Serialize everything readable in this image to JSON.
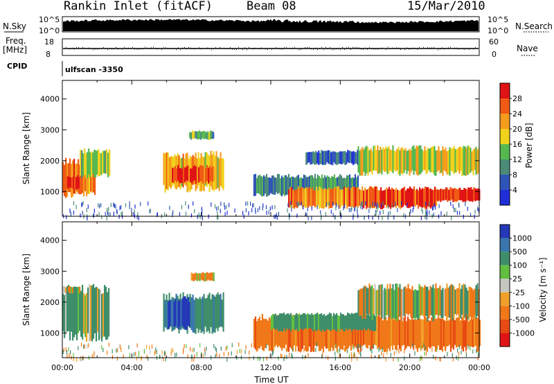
{
  "header": {
    "station": "Rankin Inlet (fitACF)",
    "beam": "Beam 08",
    "date": "15/Mar/2010"
  },
  "strip_labels": {
    "nsky": "N.Sky",
    "nsearch": "N.Search",
    "freq": "Freq.",
    "freq_unit": "[MHz]",
    "nave": "Nave",
    "cpid": "CPID",
    "cpid_value": "ulfscan -3350"
  },
  "strip_ticks": {
    "noise_left_top": "10^5",
    "noise_left_bottom": "10^0",
    "noise_right_top": "10^5",
    "noise_right_bottom": "10^0",
    "freq_top": "18",
    "freq_bottom": "8",
    "nave_top": "60",
    "nave_bottom": "0"
  },
  "colors": {
    "power_scale": [
      "#1f2ed8",
      "#2f54b8",
      "#4a8c78",
      "#55b850",
      "#f0d21c",
      "#f59c1c",
      "#f05a14",
      "#e01414"
    ],
    "velocity_scale": [
      "#2438b8",
      "#3a76ae",
      "#3e8e6a",
      "#62c040",
      "#c6c6c0",
      "#f0a028",
      "#f07818",
      "#e84a14",
      "#e01414"
    ]
  },
  "chart_data": [
    {
      "type": "heatmap",
      "title": "Power",
      "xlabel": "",
      "ylabel": "Slant Range [km]",
      "xlim": [
        0,
        24
      ],
      "ylim": [
        200,
        4600
      ],
      "x_tick_labels": [],
      "y_ticks": [
        1000,
        2000,
        3000,
        4000
      ],
      "colorbar": {
        "label": "Power [dB]",
        "range": [
          0,
          32
        ],
        "ticks": [
          4,
          8,
          12,
          16,
          20,
          24,
          28
        ]
      },
      "regions": [
        {
          "t0": 0.0,
          "t1": 1.9,
          "r0": 900,
          "r1": 2000,
          "value": 24
        },
        {
          "t0": 0.2,
          "t1": 1.0,
          "r0": 1100,
          "r1": 1500,
          "value": 30
        },
        {
          "t0": 1.0,
          "t1": 2.7,
          "r0": 1500,
          "r1": 2300,
          "value": 14
        },
        {
          "t0": 5.8,
          "t1": 9.3,
          "r0": 1100,
          "r1": 2200,
          "value": 20
        },
        {
          "t0": 6.3,
          "t1": 8.7,
          "r0": 1300,
          "r1": 1800,
          "value": 28
        },
        {
          "t0": 7.3,
          "t1": 8.7,
          "r0": 2700,
          "r1": 2950,
          "value": 12
        },
        {
          "t0": 11.0,
          "t1": 17.0,
          "r0": 900,
          "r1": 1500,
          "value": 10
        },
        {
          "t0": 13.0,
          "t1": 18.0,
          "r0": 500,
          "r1": 1100,
          "value": 24
        },
        {
          "t0": 17.5,
          "t1": 21.5,
          "r0": 500,
          "r1": 1100,
          "value": 28
        },
        {
          "t0": 21.5,
          "t1": 24.0,
          "r0": 700,
          "r1": 1100,
          "value": 30
        },
        {
          "t0": 17.0,
          "t1": 24.0,
          "r0": 1600,
          "r1": 2400,
          "value": 18
        },
        {
          "t0": 14.0,
          "t1": 17.0,
          "r0": 1900,
          "r1": 2300,
          "value": 6
        }
      ]
    },
    {
      "type": "heatmap",
      "title": "Velocity",
      "xlabel": "Time UT",
      "ylabel": "Slant Range [km]",
      "xlim": [
        0,
        24
      ],
      "ylim": [
        200,
        4600
      ],
      "x_tick_labels": [
        "00:00",
        "04:00",
        "08:00",
        "12:00",
        "16:00",
        "20:00",
        "00:00"
      ],
      "y_ticks": [
        1000,
        2000,
        3000,
        4000
      ],
      "colorbar": {
        "label": "Velocity [m s⁻¹]",
        "levels": [
          "1000",
          "500",
          "100",
          "25",
          "-25",
          "-100",
          "-500",
          "-1000"
        ]
      },
      "regions": [
        {
          "t0": 0.0,
          "t1": 2.7,
          "r0": 900,
          "r1": 2400,
          "value": 100
        },
        {
          "t0": 5.8,
          "t1": 9.3,
          "r0": 1100,
          "r1": 2200,
          "value": 250
        },
        {
          "t0": 6.0,
          "t1": 7.3,
          "r0": 1200,
          "r1": 2100,
          "value": 800
        },
        {
          "t0": 7.4,
          "t1": 8.7,
          "r0": 2700,
          "r1": 2950,
          "value": -100
        },
        {
          "t0": 11.0,
          "t1": 24.0,
          "r0": 500,
          "r1": 1500,
          "value": -200
        },
        {
          "t0": 12.0,
          "t1": 18.0,
          "r0": 1100,
          "r1": 1600,
          "value": 150
        },
        {
          "t0": 17.0,
          "t1": 24.0,
          "r0": 1500,
          "r1": 2500,
          "value": 0
        },
        {
          "t0": 0.0,
          "t1": 1.0,
          "r0": 2300,
          "r1": 2500,
          "value": 0
        }
      ]
    }
  ]
}
